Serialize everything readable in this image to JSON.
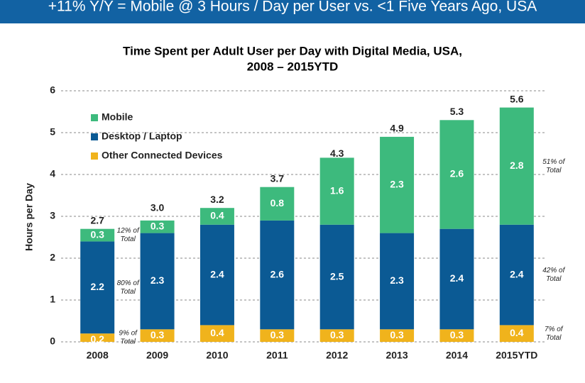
{
  "header": {
    "title": "+11% Y/Y = Mobile @ 3 Hours / Day per User vs. <1  Five Years Ago, USA"
  },
  "chart_data": {
    "type": "stacked_bar",
    "title": "Time Spent per Adult User per Day with Digital Media, USA,",
    "subtitle": "2008 – 2015YTD",
    "y_label": "Hours per Day",
    "categories": [
      "2008",
      "2009",
      "2010",
      "2011",
      "2012",
      "2013",
      "2014",
      "2015YTD"
    ],
    "series": [
      {
        "name": "Other Connected Devices",
        "color": "#f0b31c",
        "values": [
          0.2,
          0.3,
          0.4,
          0.3,
          0.3,
          0.3,
          0.3,
          0.4
        ]
      },
      {
        "name": "Desktop / Laptop",
        "color": "#0b5a94",
        "values": [
          2.2,
          2.3,
          2.4,
          2.6,
          2.5,
          2.3,
          2.4,
          2.4
        ]
      },
      {
        "name": "Mobile",
        "color": "#3dba7d",
        "values": [
          0.3,
          0.3,
          0.4,
          0.8,
          1.6,
          2.3,
          2.6,
          2.8
        ]
      }
    ],
    "totals": [
      2.7,
      3.0,
      3.2,
      3.7,
      4.3,
      4.9,
      5.3,
      5.6
    ],
    "total_labels": [
      "2.7",
      "3.0",
      "3.2",
      "3.7",
      "4.3",
      "4.9",
      "5.3",
      "5.6"
    ],
    "annotations": [
      {
        "lines": [
          "12% of",
          "Total"
        ]
      },
      {
        "lines": [
          "80% of",
          "Total"
        ]
      },
      {
        "lines": [
          "9% of",
          "Total"
        ]
      },
      {
        "lines": [
          "51% of",
          "Total"
        ]
      },
      {
        "lines": [
          "42% of",
          "Total"
        ]
      },
      {
        "lines": [
          "7% of",
          "Total"
        ]
      }
    ],
    "ylim": [
      0,
      6
    ],
    "yticks": [
      0,
      1,
      2,
      3,
      4,
      5,
      6
    ],
    "grid": true,
    "legend": "upper left"
  }
}
